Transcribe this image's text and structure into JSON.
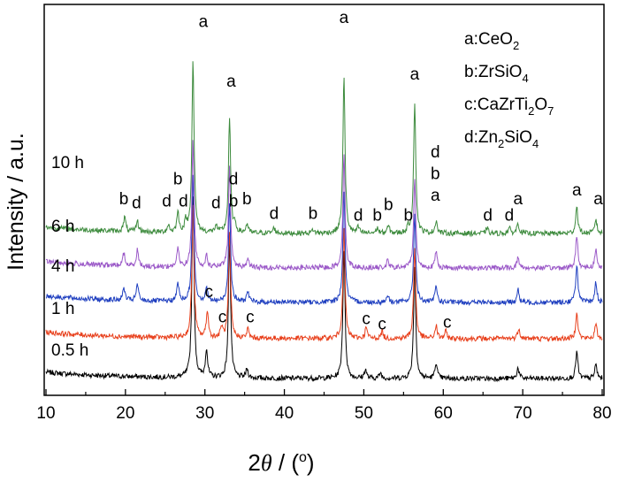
{
  "chart_data": {
    "type": "line",
    "xlabel_prefix": "2",
    "xlabel_theta": "θ",
    "xlabel_suffix": " / (",
    "xlabel_degree": "o",
    "xlabel_close": ")",
    "ylabel": "Intensity / a.u.",
    "xlim": [
      10,
      80
    ],
    "xticks": [
      "10",
      "20",
      "30",
      "40",
      "50",
      "60",
      "70",
      "80"
    ],
    "grid": false,
    "legend_position": "top-right",
    "legend": [
      {
        "letter": "a",
        "base": "CeO",
        "parts": [
          {
            "t": "2",
            "sub": true
          }
        ]
      },
      {
        "letter": "b",
        "base": "ZrSiO",
        "parts": [
          {
            "t": "4",
            "sub": true
          }
        ]
      },
      {
        "letter": "c",
        "base": "CaZrTi",
        "parts": [
          {
            "t": "2",
            "sub": true
          },
          {
            "t": "O",
            "sub": false
          },
          {
            "t": "7",
            "sub": true
          }
        ]
      },
      {
        "letter": "d",
        "base": "Zn",
        "parts": [
          {
            "t": "2",
            "sub": true
          },
          {
            "t": "SiO",
            "sub": false
          },
          {
            "t": "4",
            "sub": true
          }
        ]
      }
    ],
    "series": [
      {
        "name": "0.5 h",
        "color": "#000000",
        "baseline": 0.0,
        "peaks": [
          [
            28.5,
            10.0
          ],
          [
            30.2,
            1.6
          ],
          [
            33.1,
            7.8
          ],
          [
            35.3,
            0.5
          ],
          [
            47.5,
            7.2
          ],
          [
            50.2,
            0.5
          ],
          [
            52.1,
            0.3
          ],
          [
            56.4,
            6.2
          ],
          [
            59.1,
            0.9
          ],
          [
            69.4,
            0.6
          ],
          [
            76.8,
            1.5
          ],
          [
            79.2,
            0.8
          ]
        ]
      },
      {
        "name": "1 h",
        "color": "#e8401c",
        "baseline": 2.2,
        "peaks": [
          [
            28.5,
            7.5
          ],
          [
            30.3,
            1.5
          ],
          [
            32.1,
            0.6
          ],
          [
            33.1,
            5.8
          ],
          [
            35.4,
            0.5
          ],
          [
            47.5,
            6.2
          ],
          [
            50.3,
            0.6
          ],
          [
            52.3,
            0.4
          ],
          [
            56.4,
            5.0
          ],
          [
            59.1,
            0.7
          ],
          [
            60.3,
            0.4
          ],
          [
            69.5,
            0.6
          ],
          [
            76.8,
            1.5
          ],
          [
            79.2,
            0.8
          ]
        ]
      },
      {
        "name": "4 h",
        "color": "#2040c0",
        "baseline": 4.2,
        "peaks": [
          [
            19.8,
            0.7
          ],
          [
            21.5,
            0.9
          ],
          [
            26.6,
            1.0
          ],
          [
            28.5,
            7.0
          ],
          [
            30.2,
            0.8
          ],
          [
            33.1,
            5.5
          ],
          [
            35.4,
            0.6
          ],
          [
            47.5,
            6.3
          ],
          [
            53.0,
            0.4
          ],
          [
            56.4,
            4.9
          ],
          [
            59.1,
            0.9
          ],
          [
            69.4,
            0.7
          ],
          [
            76.8,
            2.1
          ],
          [
            79.2,
            1.1
          ]
        ]
      },
      {
        "name": "6 h",
        "color": "#9b59c8",
        "baseline": 6.1,
        "peaks": [
          [
            19.8,
            0.7
          ],
          [
            21.5,
            0.9
          ],
          [
            26.6,
            1.0
          ],
          [
            28.5,
            7.0
          ],
          [
            30.2,
            0.6
          ],
          [
            33.1,
            5.5
          ],
          [
            35.4,
            0.5
          ],
          [
            47.5,
            6.3
          ],
          [
            53.0,
            0.4
          ],
          [
            56.4,
            4.9
          ],
          [
            59.1,
            0.9
          ],
          [
            69.4,
            0.6
          ],
          [
            76.8,
            1.8
          ],
          [
            79.2,
            1.0
          ]
        ]
      },
      {
        "name": "10 h",
        "color": "#3d8b3d",
        "baseline": 8.0,
        "peaks": [
          [
            19.9,
            0.8
          ],
          [
            21.5,
            0.6
          ],
          [
            25.4,
            0.4
          ],
          [
            26.6,
            1.1
          ],
          [
            27.6,
            0.6
          ],
          [
            28.5,
            9.5
          ],
          [
            31.4,
            0.4
          ],
          [
            33.1,
            6.3
          ],
          [
            33.8,
            0.4
          ],
          [
            35.3,
            0.5
          ],
          [
            38.7,
            0.3
          ],
          [
            43.6,
            0.2
          ],
          [
            47.5,
            8.6
          ],
          [
            49.3,
            0.3
          ],
          [
            51.7,
            0.3
          ],
          [
            53.1,
            0.4
          ],
          [
            55.6,
            0.3
          ],
          [
            56.4,
            7.2
          ],
          [
            59.1,
            0.7
          ],
          [
            65.5,
            0.3
          ],
          [
            68.3,
            0.3
          ],
          [
            69.4,
            0.6
          ],
          [
            76.8,
            1.5
          ],
          [
            79.2,
            0.8
          ]
        ]
      }
    ],
    "annotations": [
      {
        "text": "a",
        "x": 29.8,
        "y": 19.4
      },
      {
        "text": "a",
        "x": 33.3,
        "y": 16.1
      },
      {
        "text": "a",
        "x": 47.5,
        "y": 19.6
      },
      {
        "text": "a",
        "x": 56.4,
        "y": 16.5
      },
      {
        "text": "d",
        "x": 59.0,
        "y": 12.2
      },
      {
        "text": "b",
        "x": 59.0,
        "y": 11.0
      },
      {
        "text": "a",
        "x": 59.0,
        "y": 9.8
      },
      {
        "text": "a",
        "x": 69.4,
        "y": 9.6
      },
      {
        "text": "a",
        "x": 76.8,
        "y": 10.1
      },
      {
        "text": "a",
        "x": 79.5,
        "y": 9.6
      },
      {
        "text": "b",
        "x": 19.8,
        "y": 9.6
      },
      {
        "text": "d",
        "x": 21.4,
        "y": 9.4
      },
      {
        "text": "d",
        "x": 25.2,
        "y": 9.5
      },
      {
        "text": "b",
        "x": 26.6,
        "y": 10.7
      },
      {
        "text": "d",
        "x": 27.3,
        "y": 9.5
      },
      {
        "text": "d",
        "x": 31.4,
        "y": 9.4
      },
      {
        "text": "d",
        "x": 33.6,
        "y": 10.7
      },
      {
        "text": "b",
        "x": 33.6,
        "y": 9.5
      },
      {
        "text": "b",
        "x": 35.3,
        "y": 9.6
      },
      {
        "text": "d",
        "x": 38.7,
        "y": 8.8
      },
      {
        "text": "b",
        "x": 43.6,
        "y": 8.8
      },
      {
        "text": "d",
        "x": 49.3,
        "y": 8.7
      },
      {
        "text": "b",
        "x": 51.7,
        "y": 8.7
      },
      {
        "text": "b",
        "x": 53.1,
        "y": 9.3
      },
      {
        "text": "b",
        "x": 55.6,
        "y": 8.7
      },
      {
        "text": "d",
        "x": 65.6,
        "y": 8.7
      },
      {
        "text": "d",
        "x": 68.3,
        "y": 8.7
      },
      {
        "text": "c",
        "x": 30.5,
        "y": 4.5
      },
      {
        "text": "c",
        "x": 32.2,
        "y": 3.1
      },
      {
        "text": "c",
        "x": 35.7,
        "y": 3.1
      },
      {
        "text": "c",
        "x": 50.3,
        "y": 3.0
      },
      {
        "text": "c",
        "x": 52.3,
        "y": 2.7
      },
      {
        "text": "c",
        "x": 60.5,
        "y": 2.8
      }
    ]
  }
}
